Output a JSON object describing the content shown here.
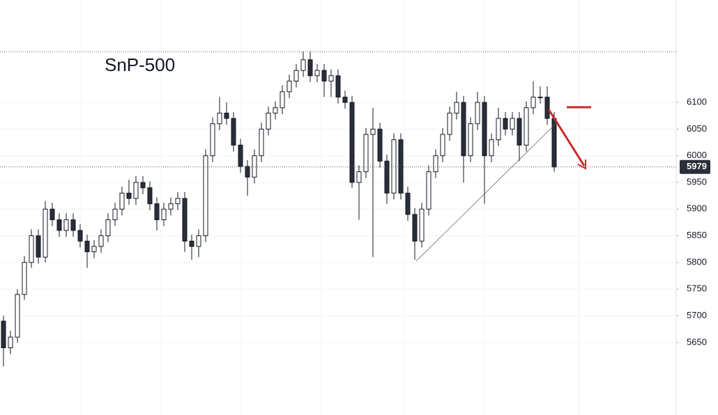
{
  "chart_data": {
    "type": "candlestick",
    "title": "SnP-500",
    "open": [
      5690,
      5640,
      5660,
      5740,
      5800,
      5850,
      5810,
      5900,
      5880,
      5860,
      5880,
      5860,
      5840,
      5820,
      5830,
      5850,
      5880,
      5900,
      5930,
      5920,
      5950,
      5940,
      5910,
      5880,
      5900,
      5910,
      5920,
      5840,
      5830,
      5850,
      6000,
      6060,
      6080,
      6070,
      6020,
      5980,
      5960,
      6000,
      6050,
      6080,
      6090,
      6120,
      6140,
      6160,
      6180,
      6150,
      6160,
      6140,
      6150,
      6110,
      6100,
      5950,
      5970,
      6040,
      6050,
      5990,
      5930,
      6030,
      5930,
      5890,
      5840,
      5900,
      5970,
      6000,
      6040,
      6080,
      6100,
      6000,
      6060,
      6100,
      6000,
      6030,
      6070,
      6050,
      6070,
      6020,
      6090,
      6110,
      6110,
      6070
    ],
    "high": [
      5700,
      5672,
      5750,
      5812,
      5862,
      5862,
      5915,
      5912,
      5892,
      5892,
      5892,
      5872,
      5852,
      5842,
      5862,
      5892,
      5912,
      5942,
      5955,
      5962,
      5962,
      5952,
      5922,
      5912,
      5922,
      5932,
      5932,
      5852,
      5862,
      6012,
      6072,
      6110,
      6100,
      6082,
      6032,
      5992,
      6012,
      6062,
      6092,
      6102,
      6132,
      6152,
      6172,
      6195,
      6195,
      6172,
      6172,
      6162,
      6162,
      6122,
      6112,
      5982,
      6052,
      6090,
      6062,
      6002,
      6042,
      6042,
      5942,
      5902,
      5912,
      5982,
      6012,
      6052,
      6092,
      6120,
      6112,
      6072,
      6120,
      6112,
      6042,
      6090,
      6082,
      6082,
      6082,
      6102,
      6140,
      6130,
      6130,
      6082
    ],
    "low": [
      5605,
      5628,
      5650,
      5730,
      5790,
      5798,
      5800,
      5868,
      5848,
      5848,
      5848,
      5828,
      5790,
      5808,
      5818,
      5838,
      5868,
      5888,
      5908,
      5908,
      5928,
      5898,
      5860,
      5868,
      5888,
      5898,
      5820,
      5805,
      5810,
      5838,
      5988,
      6048,
      6058,
      6008,
      5968,
      5925,
      5948,
      5988,
      6038,
      6068,
      6078,
      6108,
      6128,
      6148,
      6138,
      6138,
      6110,
      6110,
      6098,
      6088,
      5940,
      5880,
      5958,
      5810,
      5978,
      5910,
      5918,
      5918,
      5878,
      5805,
      5828,
      5888,
      5958,
      5988,
      6028,
      6068,
      5950,
      5988,
      6048,
      5910,
      5988,
      6018,
      6038,
      6038,
      5990,
      6008,
      6078,
      6098,
      6058,
      5970
    ],
    "close": [
      5640,
      5660,
      5740,
      5800,
      5850,
      5810,
      5900,
      5880,
      5860,
      5880,
      5860,
      5840,
      5820,
      5830,
      5850,
      5880,
      5900,
      5930,
      5920,
      5950,
      5940,
      5910,
      5880,
      5900,
      5910,
      5920,
      5840,
      5830,
      5850,
      6000,
      6060,
      6080,
      6070,
      6020,
      5980,
      5960,
      6000,
      6050,
      6080,
      6090,
      6120,
      6140,
      6160,
      6180,
      6150,
      6160,
      6140,
      6150,
      6110,
      6100,
      5950,
      5970,
      6040,
      6050,
      5990,
      5930,
      6030,
      5930,
      5890,
      5840,
      5900,
      5970,
      6000,
      6040,
      6080,
      6100,
      6000,
      6060,
      6100,
      6000,
      6030,
      6070,
      6050,
      6070,
      6020,
      6090,
      6110,
      6110,
      6070,
      5979
    ],
    "up_color": "#ffffff",
    "down_color": "#2a2e39",
    "outline": "#131722",
    "ylim": [
      5514,
      6292
    ],
    "yticks": [
      5650,
      5700,
      5750,
      5800,
      5850,
      5900,
      5950,
      6000,
      6050,
      6100
    ],
    "last_price": 5979,
    "hlines": [
      6195
    ],
    "grid": true
  }
}
